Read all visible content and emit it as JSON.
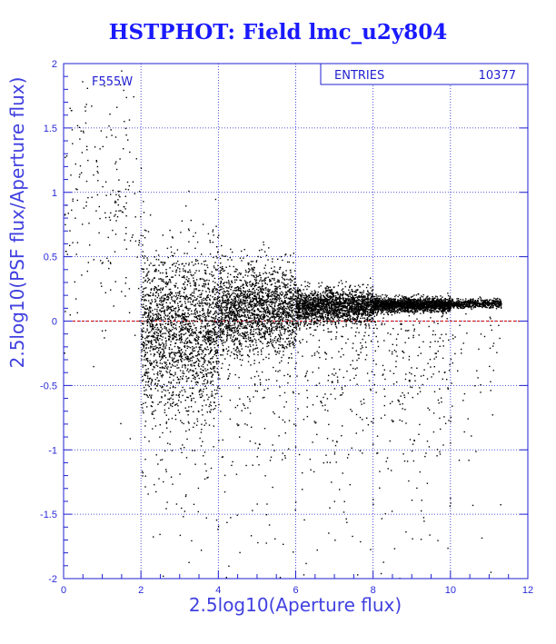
{
  "page": {
    "title": "HSTPHOT: Field lmc_u2y804"
  },
  "chart_data": {
    "type": "scatter",
    "title": "HSTPHOT: Field lmc_u2y804",
    "xlabel": "2.5log10(Aperture flux)",
    "ylabel": "2.5log10(PSF flux/Aperture flux)",
    "xlim": [
      0,
      12
    ],
    "ylim": [
      -2,
      2
    ],
    "xticks": [
      0,
      2,
      4,
      6,
      8,
      10,
      12
    ],
    "yticks": [
      -2,
      -1.5,
      -1,
      -0.5,
      0,
      0.5,
      1,
      1.5,
      2
    ],
    "grid": true,
    "reference_line": {
      "y": 0,
      "color": "#cc0000",
      "style": "dashed"
    },
    "filter_label": "F555W",
    "stats_box": {
      "label": "ENTRIES",
      "value": "10377"
    },
    "n_points": 10377,
    "point_color": "#000000",
    "axis_color": "#1f1fd0",
    "distribution_summary": [
      {
        "x_range": [
          0,
          2
        ],
        "y_median": 1.0,
        "y_spread": 0.8,
        "density": "sparse"
      },
      {
        "x_range": [
          2,
          4
        ],
        "y_median": -0.05,
        "y_spread": 0.55,
        "density": "dense"
      },
      {
        "x_range": [
          4,
          6
        ],
        "y_median": 0.1,
        "y_spread": 0.3,
        "density": "dense"
      },
      {
        "x_range": [
          6,
          8
        ],
        "y_median": 0.12,
        "y_spread": 0.12,
        "density": "dense"
      },
      {
        "x_range": [
          8,
          10
        ],
        "y_median": 0.13,
        "y_spread": 0.05,
        "density": "dense"
      },
      {
        "x_range": [
          10,
          11.3
        ],
        "y_median": 0.14,
        "y_spread": 0.03,
        "density": "medium"
      }
    ]
  }
}
